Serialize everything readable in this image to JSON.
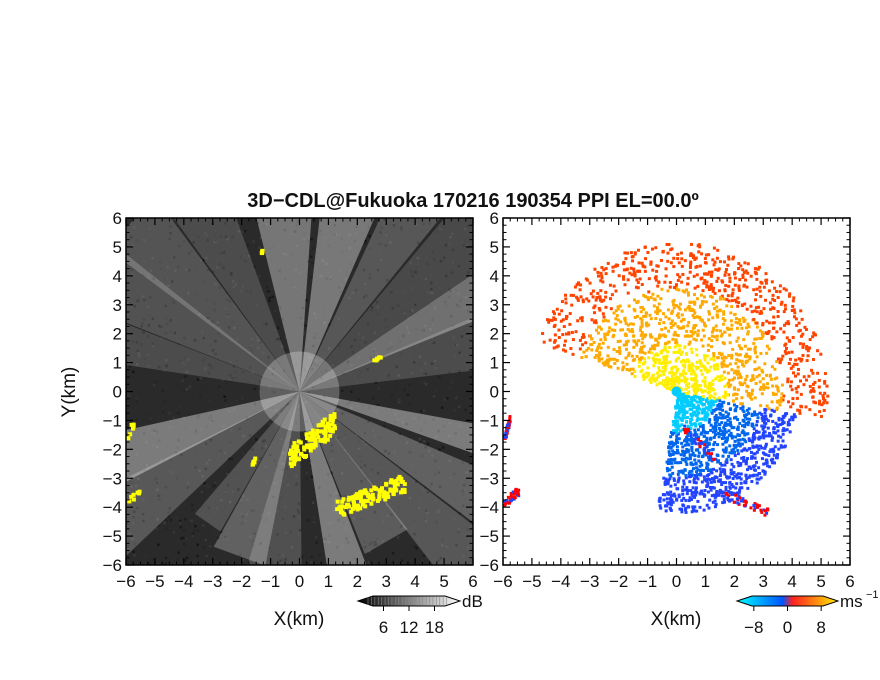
{
  "title": "3D−CDL@Fukuoka 170216 190354 PPI EL=00.0º",
  "chart_data": [
    {
      "type": "heatmap",
      "panel": "reflectivity",
      "xlabel": "X(km)",
      "ylabel": "Y(km)",
      "xlim": [
        -6,
        6
      ],
      "ylim": [
        -6,
        6
      ],
      "x_ticks": [
        "−6",
        "−5",
        "−4",
        "−3",
        "−2",
        "−1",
        "0",
        "1",
        "2",
        "3",
        "4",
        "5",
        "6"
      ],
      "y_ticks": [
        "6",
        "5",
        "4",
        "3",
        "2",
        "1",
        "0",
        "−1",
        "−2",
        "−3",
        "−4",
        "−5",
        "−6"
      ],
      "colorbar": {
        "unit": "dB",
        "ticks": [
          "6",
          "12",
          "18"
        ],
        "range": [
          0,
          24
        ],
        "colors": [
          "#000000",
          "#ffffff"
        ]
      },
      "background_color": "#2a2a2a",
      "highlight_color": "#ffff00",
      "beam_azimuths_deg": [
        15,
        28,
        42,
        58,
        75,
        95,
        118,
        135,
        150,
        165,
        200,
        215,
        235,
        250,
        262,
        285,
        300,
        315,
        330,
        345
      ],
      "highlight_regions": [
        {
          "x": [
            -6.0,
            -5.8
          ],
          "y": [
            -1.6,
            -0.9
          ]
        },
        {
          "x": [
            -6.0,
            -5.5
          ],
          "y": [
            -3.8,
            -3.3
          ]
        },
        {
          "x": [
            -0.4,
            1.2
          ],
          "y": [
            -2.6,
            -0.6
          ]
        },
        {
          "x": [
            1.2,
            3.6
          ],
          "y": [
            -4.3,
            -2.8
          ]
        },
        {
          "x": [
            -1.7,
            -1.5
          ],
          "y": [
            -2.5,
            -2.0
          ]
        },
        {
          "x": [
            -1.4,
            -1.3
          ],
          "y": [
            4.8,
            5.0
          ]
        },
        {
          "x": [
            2.5,
            2.8
          ],
          "y": [
            1.1,
            1.3
          ]
        }
      ]
    },
    {
      "type": "heatmap",
      "panel": "doppler-velocity",
      "xlabel": "X(km)",
      "xlim": [
        -6,
        6
      ],
      "ylim": [
        -6,
        6
      ],
      "x_ticks": [
        "−6",
        "−5",
        "−4",
        "−3",
        "−2",
        "−1",
        "0",
        "1",
        "2",
        "3",
        "4",
        "5",
        "6"
      ],
      "y_ticks": [
        "6",
        "5",
        "4",
        "3",
        "2",
        "1",
        "0",
        "−1",
        "−2",
        "−3",
        "−4",
        "−5",
        "−6"
      ],
      "colorbar": {
        "unit": "ms",
        "unit_superscript": "−1",
        "ticks": [
          "−8",
          "0",
          "8"
        ],
        "range": [
          -12,
          12
        ],
        "colors": [
          "#00ffff",
          "#0055ff",
          "#ff2020",
          "#ffee00"
        ]
      },
      "receding_colors": [
        "#ffee00",
        "#ffaa00",
        "#ff4400"
      ],
      "approaching_colors": [
        "#00ccff",
        "#0066ee",
        "#2244ff"
      ],
      "edge_color": "#ff0000",
      "receding_sector_deg": [
        -70,
        100
      ],
      "approaching_sector_deg": [
        100,
        190
      ]
    }
  ]
}
